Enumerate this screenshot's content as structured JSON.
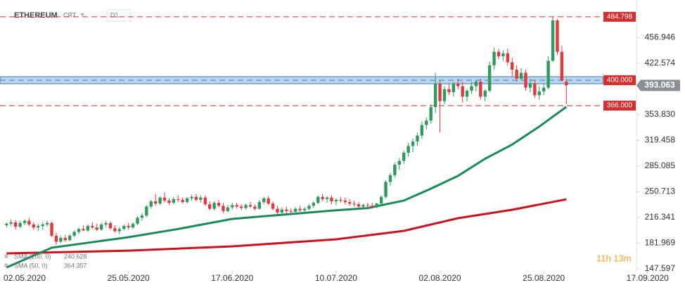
{
  "chart_data": {
    "type": "candlestick",
    "instrument": "ETHEREUM",
    "badge": "CRT",
    "timeframe": "D1",
    "timer": "11h 13m",
    "up_color": "#2e9a5c",
    "down_color": "#e03a3e",
    "x": [
      "28.04.2020",
      "29.04.2020",
      "30.04.2020",
      "01.05.2020",
      "02.05.2020",
      "03.05.2020",
      "04.05.2020",
      "05.05.2020",
      "06.05.2020",
      "07.05.2020",
      "08.05.2020",
      "09.05.2020",
      "10.05.2020",
      "11.05.2020",
      "12.05.2020",
      "13.05.2020",
      "14.05.2020",
      "15.05.2020",
      "16.05.2020",
      "17.05.2020",
      "18.05.2020",
      "19.05.2020",
      "20.05.2020",
      "21.05.2020",
      "22.05.2020",
      "23.05.2020",
      "24.05.2020",
      "25.05.2020",
      "26.05.2020",
      "27.05.2020",
      "28.05.2020",
      "29.05.2020",
      "30.05.2020",
      "31.05.2020",
      "01.06.2020",
      "02.06.2020",
      "03.06.2020",
      "04.06.2020",
      "05.06.2020",
      "06.06.2020",
      "07.06.2020",
      "08.06.2020",
      "09.06.2020",
      "10.06.2020",
      "11.06.2020",
      "12.06.2020",
      "13.06.2020",
      "14.06.2020",
      "15.06.2020",
      "16.06.2020",
      "17.06.2020",
      "18.06.2020",
      "19.06.2020",
      "20.06.2020",
      "21.06.2020",
      "22.06.2020",
      "23.06.2020",
      "24.06.2020",
      "25.06.2020",
      "26.06.2020",
      "27.06.2020",
      "28.06.2020",
      "29.06.2020",
      "30.06.2020",
      "01.07.2020",
      "02.07.2020",
      "03.07.2020",
      "04.07.2020",
      "05.07.2020",
      "06.07.2020",
      "07.07.2020",
      "08.07.2020",
      "09.07.2020",
      "10.07.2020",
      "11.07.2020",
      "12.07.2020",
      "13.07.2020",
      "14.07.2020",
      "15.07.2020",
      "16.07.2020",
      "17.07.2020",
      "18.07.2020",
      "19.07.2020",
      "20.07.2020",
      "21.07.2020",
      "22.07.2020",
      "23.07.2020",
      "24.07.2020",
      "25.07.2020",
      "26.07.2020",
      "27.07.2020",
      "28.07.2020",
      "29.07.2020",
      "30.07.2020",
      "31.07.2020",
      "01.08.2020",
      "02.08.2020",
      "03.08.2020",
      "04.08.2020",
      "05.08.2020",
      "06.08.2020",
      "07.08.2020",
      "08.08.2020",
      "09.08.2020",
      "10.08.2020",
      "11.08.2020",
      "12.08.2020",
      "13.08.2020",
      "14.08.2020",
      "15.08.2020",
      "16.08.2020",
      "17.08.2020",
      "18.08.2020",
      "19.08.2020",
      "20.08.2020",
      "21.08.2020",
      "22.08.2020",
      "23.08.2020",
      "24.08.2020",
      "25.08.2020",
      "26.08.2020",
      "27.08.2020",
      "28.08.2020",
      "29.08.2020",
      "30.08.2020"
    ],
    "ohlc": [
      [
        206,
        210,
        203,
        208
      ],
      [
        208,
        214,
        205,
        210
      ],
      [
        210,
        213,
        200,
        204
      ],
      [
        204,
        212,
        202,
        209
      ],
      [
        209,
        214,
        206,
        212
      ],
      [
        212,
        216,
        205,
        207
      ],
      [
        207,
        210,
        200,
        203
      ],
      [
        203,
        208,
        198,
        205
      ],
      [
        205,
        210,
        200,
        207
      ],
      [
        207,
        212,
        204,
        209
      ],
      [
        209,
        211,
        190,
        192
      ],
      [
        192,
        196,
        180,
        184
      ],
      [
        184,
        192,
        182,
        189
      ],
      [
        189,
        193,
        184,
        186
      ],
      [
        186,
        194,
        185,
        192
      ],
      [
        192,
        199,
        190,
        197
      ],
      [
        197,
        203,
        194,
        201
      ],
      [
        201,
        206,
        198,
        199
      ],
      [
        199,
        207,
        197,
        205
      ],
      [
        205,
        210,
        201,
        203
      ],
      [
        203,
        208,
        198,
        200
      ],
      [
        200,
        209,
        199,
        207
      ],
      [
        207,
        212,
        203,
        209
      ],
      [
        209,
        211,
        200,
        202
      ],
      [
        202,
        206,
        196,
        198
      ],
      [
        198,
        204,
        194,
        201
      ],
      [
        201,
        207,
        199,
        205
      ],
      [
        205,
        209,
        200,
        203
      ],
      [
        203,
        210,
        201,
        208
      ],
      [
        208,
        218,
        206,
        216
      ],
      [
        216,
        222,
        212,
        219
      ],
      [
        219,
        233,
        217,
        231
      ],
      [
        231,
        240,
        228,
        238
      ],
      [
        238,
        248,
        232,
        235
      ],
      [
        235,
        245,
        233,
        243
      ],
      [
        243,
        250,
        236,
        239
      ],
      [
        239,
        242,
        233,
        236
      ],
      [
        236,
        244,
        234,
        241
      ],
      [
        241,
        246,
        237,
        240
      ],
      [
        240,
        243,
        235,
        237
      ],
      [
        237,
        244,
        235,
        242
      ],
      [
        242,
        247,
        239,
        244
      ],
      [
        244,
        248,
        238,
        240
      ],
      [
        240,
        246,
        236,
        243
      ],
      [
        243,
        246,
        232,
        234
      ],
      [
        234,
        238,
        226,
        228
      ],
      [
        228,
        238,
        226,
        236
      ],
      [
        236,
        240,
        230,
        232
      ],
      [
        232,
        236,
        222,
        225
      ],
      [
        225,
        233,
        223,
        230
      ],
      [
        230,
        236,
        227,
        233
      ],
      [
        233,
        236,
        228,
        231
      ],
      [
        231,
        234,
        226,
        229
      ],
      [
        229,
        235,
        227,
        233
      ],
      [
        233,
        237,
        229,
        231
      ],
      [
        231,
        234,
        226,
        228
      ],
      [
        228,
        240,
        227,
        237
      ],
      [
        237,
        244,
        234,
        242
      ],
      [
        242,
        245,
        233,
        235
      ],
      [
        235,
        238,
        226,
        228
      ],
      [
        228,
        232,
        221,
        223
      ],
      [
        223,
        230,
        220,
        227
      ],
      [
        227,
        231,
        222,
        225
      ],
      [
        225,
        229,
        221,
        224
      ],
      [
        224,
        230,
        222,
        228
      ],
      [
        228,
        232,
        224,
        226
      ],
      [
        226,
        230,
        222,
        228
      ],
      [
        228,
        234,
        226,
        232
      ],
      [
        232,
        238,
        229,
        236
      ],
      [
        236,
        246,
        234,
        244
      ],
      [
        244,
        248,
        238,
        241
      ],
      [
        241,
        245,
        236,
        243
      ],
      [
        243,
        246,
        234,
        238
      ],
      [
        238,
        242,
        233,
        240
      ],
      [
        240,
        244,
        236,
        239
      ],
      [
        239,
        243,
        234,
        237
      ],
      [
        237,
        241,
        232,
        235
      ],
      [
        235,
        239,
        231,
        234
      ],
      [
        234,
        237,
        229,
        231
      ],
      [
        231,
        235,
        227,
        233
      ],
      [
        233,
        236,
        229,
        232
      ],
      [
        232,
        236,
        228,
        230
      ],
      [
        230,
        236,
        229,
        235
      ],
      [
        235,
        246,
        233,
        244
      ],
      [
        244,
        266,
        242,
        264
      ],
      [
        264,
        276,
        259,
        273
      ],
      [
        273,
        290,
        270,
        287
      ],
      [
        287,
        296,
        280,
        292
      ],
      [
        292,
        306,
        288,
        303
      ],
      [
        303,
        316,
        298,
        312
      ],
      [
        312,
        322,
        304,
        318
      ],
      [
        318,
        330,
        312,
        326
      ],
      [
        326,
        345,
        322,
        340
      ],
      [
        340,
        350,
        334,
        346
      ],
      [
        346,
        368,
        342,
        364
      ],
      [
        364,
        410,
        356,
        395
      ],
      [
        395,
        400,
        330,
        372
      ],
      [
        372,
        392,
        368,
        388
      ],
      [
        388,
        396,
        380,
        384
      ],
      [
        384,
        398,
        378,
        395
      ],
      [
        395,
        402,
        388,
        392
      ],
      [
        392,
        398,
        370,
        378
      ],
      [
        378,
        388,
        372,
        386
      ],
      [
        386,
        398,
        382,
        392
      ],
      [
        392,
        400,
        385,
        398
      ],
      [
        398,
        402,
        374,
        378
      ],
      [
        378,
        388,
        372,
        386
      ],
      [
        386,
        425,
        384,
        420
      ],
      [
        420,
        444,
        414,
        438
      ],
      [
        438,
        442,
        428,
        432
      ],
      [
        432,
        440,
        426,
        436
      ],
      [
        436,
        442,
        420,
        424
      ],
      [
        424,
        430,
        405,
        414
      ],
      [
        414,
        420,
        398,
        402
      ],
      [
        402,
        416,
        400,
        410
      ],
      [
        410,
        414,
        386,
        390
      ],
      [
        390,
        402,
        384,
        396
      ],
      [
        396,
        400,
        376,
        380
      ],
      [
        380,
        392,
        374,
        385
      ],
      [
        385,
        395,
        380,
        390
      ],
      [
        390,
        432,
        388,
        426
      ],
      [
        426,
        484.798,
        424,
        480
      ],
      [
        480,
        482,
        434,
        438
      ],
      [
        438,
        446,
        398,
        400
      ],
      [
        398,
        402,
        368,
        393.063
      ]
    ],
    "series": [
      {
        "name": "SMA (200, 0)",
        "color": "#c8141e",
        "x": [
          "28.04.2020",
          "25.05.2020",
          "17.06.2020",
          "10.07.2020",
          "25.07.2020",
          "06.08.2020",
          "18.08.2020",
          "30.08.2020"
        ],
        "values": [
          168.3,
          172,
          177.8,
          187.2,
          198.5,
          215.4,
          226.7,
          240.628
        ]
      },
      {
        "name": "SMA (50, 0)",
        "color": "#1a8a5a",
        "x": [
          "28.04.2020",
          "08.05.2020",
          "25.05.2020",
          "05.06.2020",
          "17.06.2020",
          "28.06.2020",
          "10.07.2020",
          "17.07.2020",
          "25.07.2020",
          "31.07.2020",
          "06.08.2020",
          "12.08.2020",
          "18.08.2020",
          "24.08.2020",
          "30.08.2020"
        ],
        "values": [
          149.5,
          176,
          190,
          201,
          214.5,
          220,
          226,
          229,
          239,
          255,
          272,
          295,
          314,
          338,
          364.357
        ]
      }
    ],
    "levels": [
      {
        "value": 484.798,
        "label": "484.798",
        "color": "#d32f2f"
      },
      {
        "value": 400,
        "label": "400.000",
        "color": "#d32f2f",
        "zone_color": "#a9cde9",
        "line_color": "#3b78b8"
      },
      {
        "value": 366,
        "label": "366.000",
        "color": "#d32f2f"
      }
    ],
    "ylim": [
      144.8,
      507.3
    ],
    "yticks": [
      147.597,
      {
        "value": 181.969,
        "label": "181.969"
      },
      216.341,
      250.713,
      285.085,
      319.458,
      {
        "value": 353.83,
        "label": "353.830"
      },
      422.574,
      456.946
    ],
    "xlim": [
      "26.04.2020",
      "21.09.2020"
    ],
    "xticks": [
      "02.05.2020",
      "25.05.2020",
      "17.06.2020",
      "10.07.2020",
      "02.08.2020",
      "25.08.2020",
      "17.09.2020"
    ]
  }
}
